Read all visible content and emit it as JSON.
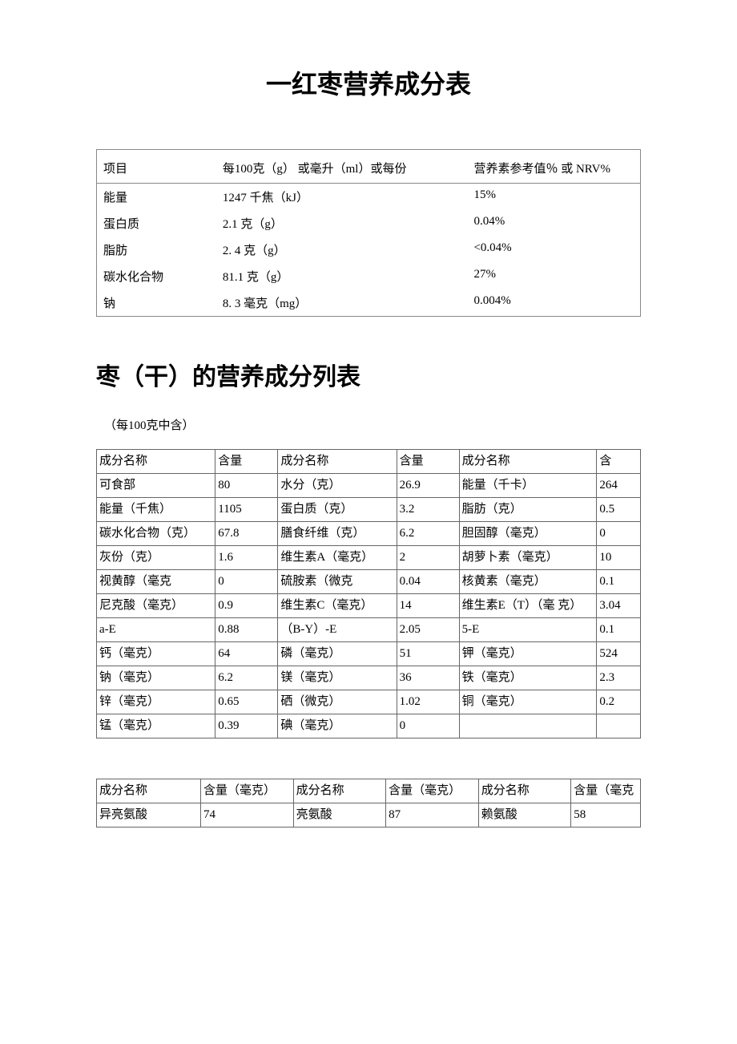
{
  "title_main": "一红枣营养成分表",
  "table1": {
    "headers": [
      "项目",
      "每100克（g） 或毫升（ml）或每份",
      "营养素参考值％ 或 NRV%"
    ],
    "rows": [
      [
        "能量",
        "1247 千焦（kJ）",
        "15%"
      ],
      [
        "蛋白质",
        "2.1 克（g）",
        "0.04%"
      ],
      [
        "脂肪",
        "2. 4 克（g）",
        "<0.04%"
      ],
      [
        "碳水化合物",
        "81.1 克（g）",
        "27%"
      ],
      [
        "钠",
        "8. 3 毫克（mg）",
        "0.004%"
      ]
    ]
  },
  "title_sub": "枣（干）的营养成分列表",
  "note": "（每100克中含）",
  "table2": {
    "headers": [
      "成分名称",
      "含量",
      "成分名称",
      "含量",
      "成分名称",
      "含"
    ],
    "rows": [
      [
        "可食部",
        "80",
        "水分（克）",
        "26.9",
        "能量（千卡）",
        "264"
      ],
      [
        "能量（千焦）",
        "1105",
        "蛋白质（克）",
        "3.2",
        "脂肪（克）",
        "0.5"
      ],
      [
        "碳水化合物（克）",
        "67.8",
        "膳食纤维（克）",
        "6.2",
        "胆固醇（毫克）",
        "0"
      ],
      [
        "灰份（克）",
        "1.6",
        "维生素A（毫克）",
        "2",
        "胡萝卜素（毫克）",
        "10"
      ],
      [
        "视黄醇（毫克",
        "0",
        "硫胺素（微克",
        "0.04",
        "核黄素（毫克）",
        "0.1"
      ],
      [
        "尼克酸（毫克）",
        "0.9",
        "维生素C（毫克）",
        "14",
        "维生素E（T）（毫 克）",
        "3.04"
      ],
      [
        "a-E",
        "0.88",
        "（B-Y）-E",
        "2.05",
        "5-E",
        "0.1"
      ],
      [
        "钙（毫克）",
        "64",
        "磷（毫克）",
        "51",
        "钾（毫克）",
        "524"
      ],
      [
        "钠（毫克）",
        "6.2",
        "镁（毫克）",
        "36",
        "铁（毫克）",
        "2.3"
      ],
      [
        "锌（毫克）",
        "0.65",
        "硒（微克）",
        "1.02",
        "铜（毫克）",
        "0.2"
      ],
      [
        "锰（毫克）",
        "0.39",
        "碘（毫克）",
        "0",
        "",
        ""
      ]
    ]
  },
  "table3": {
    "headers": [
      "成分名称",
      "含量（毫克）",
      "成分名称",
      "含量（毫克）",
      "成分名称",
      "含量（毫克"
    ],
    "rows": [
      [
        "异亮氨酸",
        "74",
        "亮氨酸",
        "87",
        "赖氨酸",
        "58"
      ]
    ]
  }
}
